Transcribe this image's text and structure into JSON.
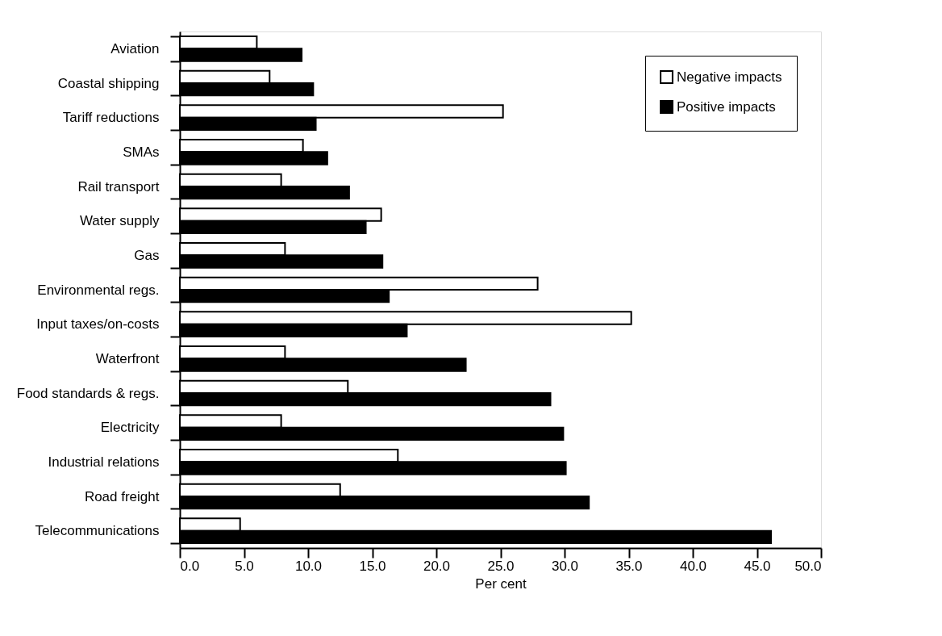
{
  "chart_data": {
    "type": "bar",
    "orientation": "horizontal",
    "xlabel": "Per cent",
    "categories": [
      "Aviation",
      "Coastal shipping",
      "Tariff reductions",
      "SMAs",
      "Rail transport",
      "Water supply",
      "Gas",
      "Environmental regs.",
      "Input taxes/on-costs",
      "Waterfront",
      "Food standards & regs.",
      "Electricity",
      "Industrial relations",
      "Road freight",
      "Telecommunications"
    ],
    "series": [
      {
        "name": "Negative impacts",
        "color": "#ffffff",
        "values": [
          6.0,
          7.0,
          25.2,
          9.6,
          7.9,
          15.7,
          8.2,
          27.9,
          35.2,
          8.2,
          13.1,
          7.9,
          17.0,
          12.5,
          4.7
        ]
      },
      {
        "name": "Positive impacts",
        "color": "#000000",
        "values": [
          9.5,
          10.4,
          10.6,
          11.5,
          13.2,
          14.5,
          15.8,
          16.3,
          17.7,
          22.3,
          28.9,
          29.9,
          30.1,
          31.9,
          46.1
        ]
      }
    ],
    "xlim": [
      0,
      50
    ],
    "xticks": [
      {
        "value": 0,
        "label": "0.0"
      },
      {
        "value": 5,
        "label": "5.0"
      },
      {
        "value": 10,
        "label": "10.0"
      },
      {
        "value": 15,
        "label": "15.0"
      },
      {
        "value": 20,
        "label": "20.0"
      },
      {
        "value": 25,
        "label": "25.0"
      },
      {
        "value": 30,
        "label": "30.0"
      },
      {
        "value": 35,
        "label": "35.0"
      },
      {
        "value": 40,
        "label": "40.0"
      },
      {
        "value": 45,
        "label": "45.0"
      },
      {
        "value": 50,
        "label": "50.0"
      }
    ],
    "grid": false,
    "legend": "top right"
  }
}
